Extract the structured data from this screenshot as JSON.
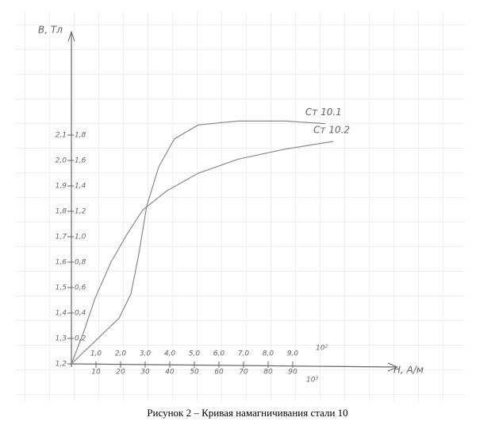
{
  "chart_data": {
    "type": "line",
    "ylabel": "B, Тл",
    "xlabel": "H, A/м",
    "xlim": [
      0,
      13.2
    ],
    "ylim": [
      0,
      2.6
    ],
    "y2lim": [
      1.2,
      2.5
    ],
    "x2lim": [
      0,
      132
    ],
    "xticks": [
      {
        "value": 1,
        "label": "1,0"
      },
      {
        "value": 2,
        "label": "2,0"
      },
      {
        "value": 3,
        "label": "3,0"
      },
      {
        "value": 4,
        "label": "4,0"
      },
      {
        "value": 5,
        "label": "5,0"
      },
      {
        "value": 6,
        "label": "6,0"
      },
      {
        "value": 7,
        "label": "7,0"
      },
      {
        "value": 8,
        "label": "8,0"
      },
      {
        "value": 9,
        "label": "9,0"
      }
    ],
    "x2ticks": [
      10,
      20,
      30,
      40,
      50,
      60,
      70,
      80,
      90
    ],
    "x_multiplier": "10²",
    "x2_multiplier": "10³",
    "yticks": [
      {
        "value": 0.2,
        "label": "0,2"
      },
      {
        "value": 0.4,
        "label": "0,4"
      },
      {
        "value": 0.6,
        "label": "0,6"
      },
      {
        "value": 0.8,
        "label": "0,8"
      },
      {
        "value": 1.0,
        "label": "1,0"
      },
      {
        "value": 1.2,
        "label": "1,2"
      },
      {
        "value": 1.4,
        "label": "1,4"
      },
      {
        "value": 1.6,
        "label": "1,6"
      },
      {
        "value": 1.8,
        "label": "1,8"
      }
    ],
    "y2ticks": [
      {
        "value": 1.2,
        "label": "1,2"
      },
      {
        "value": 1.3,
        "label": "1,3"
      },
      {
        "value": 1.4,
        "label": "1,4"
      },
      {
        "value": 1.5,
        "label": "1,5"
      },
      {
        "value": 1.6,
        "label": "1,6"
      },
      {
        "value": 1.7,
        "label": "1,7"
      },
      {
        "value": 1.8,
        "label": "1,8"
      },
      {
        "value": 1.9,
        "label": "1,9"
      },
      {
        "value": 2.0,
        "label": "2,0"
      },
      {
        "value": 2.1,
        "label": "2,1"
      }
    ],
    "series": [
      {
        "name": "Ст 10.1",
        "color": "#8a8a8a",
        "x": [
          0,
          0.97,
          1.94,
          2.42,
          2.74,
          3.06,
          3.55,
          4.19,
          5.16,
          6.77,
          8.71,
          10.32
        ],
        "values": [
          0,
          0.18,
          0.36,
          0.55,
          0.86,
          1.24,
          1.55,
          1.77,
          1.88,
          1.91,
          1.91,
          1.89
        ]
      },
      {
        "name": "Ст 10.2",
        "color": "#8a8a8a",
        "x": [
          0,
          0.48,
          0.97,
          1.61,
          2.26,
          2.9,
          3.87,
          5.16,
          6.77,
          8.71,
          10.65
        ],
        "values": [
          0,
          0.24,
          0.52,
          0.8,
          1.02,
          1.21,
          1.36,
          1.5,
          1.61,
          1.69,
          1.75
        ]
      }
    ]
  },
  "caption": "Рисунок 2 – Кривая намагничивания стали 10"
}
